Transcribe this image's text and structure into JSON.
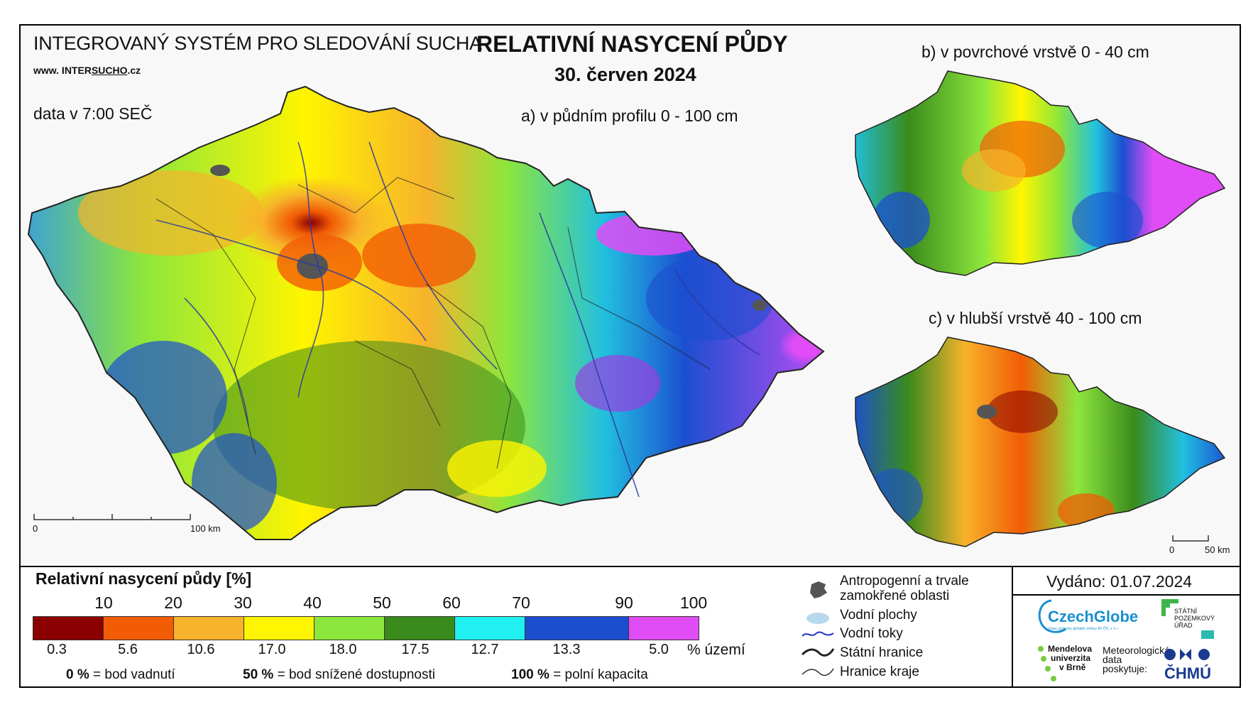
{
  "header": {
    "system_title": "INTEGROVANÝ SYSTÉM PRO SLEDOVÁNÍ SUCHA",
    "web_prefix": "www. INTER",
    "web_mid": "SUCHO",
    "web_suffix": ".cz",
    "time": "data v 7:00 SEČ",
    "title": "RELATIVNÍ NASYCENÍ PŮDY",
    "date": "30. červen 2024"
  },
  "maps": {
    "a": {
      "label": "a) v půdním profilu 0 - 100 cm",
      "scale_zero": "0",
      "scale_max": "100 km"
    },
    "b": {
      "label": "b) v povrchové vrstvě 0 - 40 cm"
    },
    "c": {
      "label": "c) v hlubší vrstvě 40 - 100 cm",
      "scale_zero": "0",
      "scale_max": "50 km"
    }
  },
  "legend": {
    "title": "Relativní nasycení půdy [%]",
    "ticks": [
      "10",
      "20",
      "30",
      "40",
      "50",
      "60",
      "70",
      "90",
      "100"
    ],
    "classes": [
      {
        "color": "#8b0000",
        "pct": "0.3"
      },
      {
        "color": "#f25c05",
        "pct": "5.6"
      },
      {
        "color": "#f7b32b",
        "pct": "10.6"
      },
      {
        "color": "#fff500",
        "pct": "17.0"
      },
      {
        "color": "#8de63c",
        "pct": "18.0"
      },
      {
        "color": "#3a8b1c",
        "pct": "17.5"
      },
      {
        "color": "#21f0f0",
        "pct": "12.7"
      },
      {
        "color": "#1c4fd0",
        "pct": "13.3"
      },
      {
        "color": "#e04cf5",
        "pct": "5.0"
      }
    ],
    "pct_unit": "% území",
    "definitions": [
      {
        "value": "0 %",
        "text": "= bod vadnutí"
      },
      {
        "value": "50 %",
        "text": "= bod snížené dostupnosti"
      },
      {
        "value": "100 %",
        "text": "= polní kapacita"
      }
    ],
    "symbols": {
      "anthropogenic": "Antropogenní a trvale zamokřené oblasti",
      "anthropogenic_line1": "Antropogenní a trvale",
      "anthropogenic_line2": "zamokřené oblasti",
      "water_bodies": "Vodní plochy",
      "rivers": "Vodní toky",
      "state_border": "Státní hranice",
      "region_border": "Hranice kraje"
    }
  },
  "issued": "Vydáno: 01.07.2024",
  "logos": {
    "czechglobe": "CzechGlobe",
    "czechglobe_sub": "Ústav výzkumu globální změny AV ČR, v. v. i.",
    "spu_line1": "STÁTNÍ",
    "spu_line2": "POZEMKOVÝ",
    "spu_line3": "ÚŘAD",
    "mendel_line1": "Mendelova",
    "mendel_line2": "univerzita",
    "mendel_line3": "v Brně",
    "met_line1": "Meteorologická",
    "met_line2": "data",
    "met_line3": "poskytuje:",
    "chmu": "ČHMÚ"
  }
}
